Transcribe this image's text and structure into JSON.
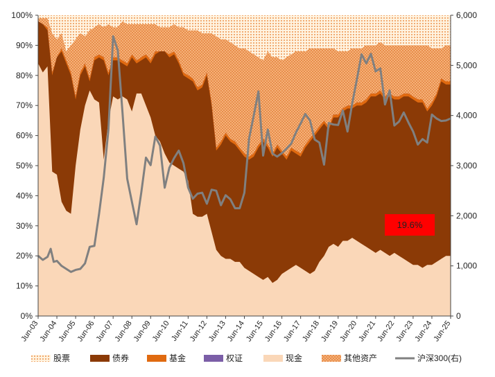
{
  "chart_data": {
    "type": "area",
    "title": "",
    "x_labels": [
      "Jun-03",
      "Jun-04",
      "Jun-05",
      "Jun-06",
      "Jun-07",
      "Jun-08",
      "Jun-09",
      "Jun-10",
      "Jun-11",
      "Jun-12",
      "Jun-13",
      "Jun-14",
      "Jun-15",
      "Jun-16",
      "Jun-17",
      "Jun-18",
      "Jun-19",
      "Jun-20",
      "Jun-21",
      "Jun-22",
      "Jun-23",
      "Jun-24",
      "Jun-25"
    ],
    "y_left": {
      "min": 0,
      "max": 100,
      "ticks": [
        "0%",
        "10%",
        "20%",
        "30%",
        "40%",
        "50%",
        "60%",
        "70%",
        "80%",
        "90%",
        "100%"
      ]
    },
    "y_right": {
      "min": 0,
      "max": 6000,
      "ticks": [
        "0",
        "1,000",
        "2,000",
        "3,000",
        "4,000",
        "5,000",
        "6,000"
      ]
    },
    "colors": {
      "stock": "#FFF3E0",
      "stock_dots": "#E87722",
      "bond": "#8B3A06",
      "fund": "#E06A10",
      "warrant": "#7B5EA7",
      "cash": "#FAD7B8",
      "cash_light": "#F8BE92",
      "other": "#F5B27A",
      "other_dots": "#D86010",
      "index": "#808080",
      "annotation_bg": "#FF0000"
    },
    "x_time": [
      2003.5,
      2003.75,
      2004.0,
      2004.25,
      2004.5,
      2004.75,
      2005.0,
      2005.25,
      2005.5,
      2005.75,
      2006.0,
      2006.25,
      2006.5,
      2006.75,
      2007.0,
      2007.25,
      2007.5,
      2007.75,
      2008.0,
      2008.25,
      2008.5,
      2008.75,
      2009.0,
      2009.25,
      2009.5,
      2009.75,
      2010.0,
      2010.25,
      2010.5,
      2010.75,
      2011.0,
      2011.25,
      2011.5,
      2011.75,
      2012.0,
      2012.25,
      2012.5,
      2012.75,
      2013.0,
      2013.25,
      2013.5,
      2013.75,
      2014.0,
      2014.25,
      2014.5,
      2014.75,
      2015.0,
      2015.25,
      2015.5,
      2015.75,
      2016.0,
      2016.25,
      2016.5,
      2016.75,
      2017.0,
      2017.25,
      2017.5,
      2017.75,
      2018.0,
      2018.25,
      2018.5,
      2018.75,
      2019.0,
      2019.25,
      2019.5,
      2019.75,
      2020.0,
      2020.25,
      2020.5,
      2020.75,
      2021.0,
      2021.25,
      2021.5,
      2021.75,
      2022.0,
      2022.25,
      2022.5,
      2022.75,
      2023.0,
      2023.25,
      2023.5,
      2023.75,
      2024.0,
      2024.25,
      2024.5,
      2024.75,
      2025.0,
      2025.25,
      2025.5
    ],
    "series": [
      {
        "name": "现金",
        "key": "cash",
        "values": [
          84,
          81,
          83,
          48,
          47,
          38,
          35,
          34,
          50,
          62,
          70,
          75,
          72,
          71,
          52,
          65,
          73,
          72,
          73,
          72,
          68,
          74,
          74,
          70,
          66,
          60,
          58,
          54,
          51,
          50,
          49,
          48,
          45,
          34,
          33,
          33,
          34,
          28,
          22,
          20,
          19,
          19,
          18,
          18,
          16,
          15,
          14,
          13,
          12,
          13,
          11,
          12,
          14,
          15,
          16,
          17,
          16,
          15,
          14,
          15,
          18,
          20,
          23,
          24,
          23,
          25,
          25,
          26,
          25,
          24,
          23,
          22,
          21,
          22,
          21,
          20,
          21,
          20,
          19,
          18,
          17,
          17,
          16,
          17,
          17,
          18,
          19,
          20,
          20
        ]
      },
      {
        "name": "债券",
        "key": "bond",
        "values": [
          98,
          97,
          95,
          80,
          86,
          88,
          84,
          80,
          72,
          80,
          83,
          78,
          85,
          86,
          85,
          80,
          85,
          85,
          84,
          83,
          86,
          84,
          85,
          86,
          84,
          87,
          88,
          88,
          86,
          87,
          84,
          80,
          79,
          78,
          75,
          76,
          80,
          70,
          55,
          57,
          60,
          58,
          57,
          55,
          53,
          52,
          53,
          56,
          58,
          56,
          53,
          56,
          54,
          52,
          55,
          54,
          53,
          56,
          58,
          60,
          62,
          64,
          62,
          66,
          66,
          68,
          69,
          69,
          70,
          70,
          71,
          73,
          73,
          74,
          72,
          73,
          72,
          72,
          73,
          73,
          72,
          71,
          71,
          68,
          70,
          73,
          78,
          77,
          77
        ]
      },
      {
        "name": "基金",
        "key": "fund",
        "values": [
          98,
          97,
          96,
          81,
          86,
          89,
          85,
          81,
          73,
          81,
          84,
          79,
          86,
          87,
          86,
          81,
          86,
          86,
          85,
          84,
          87,
          85,
          86,
          87,
          85,
          88,
          88,
          88,
          87,
          88,
          85,
          81,
          80,
          79,
          76,
          77,
          81,
          71,
          56,
          58,
          61,
          59,
          58,
          56,
          54,
          53,
          54,
          57,
          59,
          57,
          54,
          57,
          55,
          53,
          56,
          55,
          54,
          57,
          59,
          61,
          63,
          65,
          63,
          67,
          67,
          69,
          70,
          70,
          71,
          71,
          72,
          74,
          74,
          75,
          73,
          74,
          73,
          73,
          74,
          74,
          73,
          72,
          72,
          69,
          71,
          74,
          79,
          78,
          78
        ]
      },
      {
        "name": "权证",
        "key": "warrant",
        "values": [
          98,
          97,
          96,
          81,
          86,
          89,
          85,
          81,
          73,
          81,
          84,
          79,
          86,
          87,
          86,
          81,
          86,
          86,
          85,
          84,
          87,
          85,
          86,
          87,
          85,
          88,
          88,
          88,
          87,
          88,
          85,
          81,
          80,
          79,
          76,
          77,
          81,
          71,
          56,
          58,
          61,
          59,
          58,
          56,
          54,
          53,
          54,
          57,
          59,
          57,
          54,
          57,
          55,
          53,
          56,
          55,
          54,
          57,
          59,
          61,
          63,
          65,
          63,
          67,
          67,
          69,
          70,
          70,
          71,
          71,
          72,
          74,
          74,
          75,
          73,
          74,
          73,
          73,
          74,
          74,
          73,
          72,
          72,
          69,
          71,
          74,
          79,
          78,
          78
        ]
      },
      {
        "name": "其他资产",
        "key": "other",
        "values": [
          99,
          99,
          99,
          94,
          92,
          94,
          88,
          90,
          92,
          94,
          93,
          95,
          96,
          97,
          96,
          97,
          96,
          96,
          98,
          97,
          97,
          97,
          97,
          97,
          97,
          97,
          96,
          96,
          96,
          97,
          96,
          96,
          95,
          95,
          95,
          94,
          94,
          94,
          93,
          92,
          92,
          91,
          90,
          89,
          89,
          88,
          87,
          86,
          85,
          88,
          86,
          86,
          85,
          86,
          87,
          88,
          88,
          88,
          89,
          89,
          89,
          89,
          89,
          89,
          88,
          88,
          88,
          89,
          89,
          89,
          90,
          90,
          90,
          91,
          90,
          90,
          90,
          90,
          90,
          90,
          90,
          90,
          90,
          90,
          89,
          89,
          89,
          90,
          90
        ]
      },
      {
        "name": "股票",
        "key": "stock",
        "values": [
          100,
          100,
          100,
          100,
          100,
          100,
          100,
          100,
          100,
          100,
          100,
          100,
          100,
          100,
          100,
          100,
          100,
          100,
          100,
          100,
          100,
          100,
          100,
          100,
          100,
          100,
          100,
          100,
          100,
          100,
          100,
          100,
          100,
          100,
          100,
          100,
          100,
          100,
          100,
          100,
          100,
          100,
          100,
          100,
          100,
          100,
          100,
          100,
          100,
          100,
          100,
          100,
          100,
          100,
          100,
          100,
          100,
          100,
          100,
          100,
          100,
          100,
          100,
          100,
          100,
          100,
          100,
          100,
          100,
          100,
          100,
          100,
          100,
          100,
          100,
          100,
          100,
          100,
          100,
          100,
          100,
          100,
          100,
          100,
          100,
          100,
          100,
          100,
          100
        ]
      }
    ],
    "index_series": {
      "name": "沪深300(右)",
      "points": [
        [
          2003.5,
          1200
        ],
        [
          2003.75,
          1120
        ],
        [
          2004.0,
          1180
        ],
        [
          2004.17,
          1340
        ],
        [
          2004.33,
          1080
        ],
        [
          2004.5,
          1100
        ],
        [
          2004.75,
          1000
        ],
        [
          2005.0,
          940
        ],
        [
          2005.25,
          880
        ],
        [
          2005.5,
          920
        ],
        [
          2005.75,
          940
        ],
        [
          2006.0,
          1050
        ],
        [
          2006.25,
          1380
        ],
        [
          2006.5,
          1400
        ],
        [
          2006.75,
          2040
        ],
        [
          2007.0,
          2760
        ],
        [
          2007.25,
          3720
        ],
        [
          2007.5,
          5580
        ],
        [
          2007.75,
          5300
        ],
        [
          2008.0,
          4060
        ],
        [
          2008.25,
          2740
        ],
        [
          2008.5,
          2280
        ],
        [
          2008.75,
          1830
        ],
        [
          2009.0,
          2460
        ],
        [
          2009.25,
          3160
        ],
        [
          2009.5,
          3010
        ],
        [
          2009.75,
          3580
        ],
        [
          2010.0,
          3400
        ],
        [
          2010.25,
          2560
        ],
        [
          2010.5,
          2960
        ],
        [
          2010.75,
          3150
        ],
        [
          2011.0,
          3300
        ],
        [
          2011.25,
          3050
        ],
        [
          2011.5,
          2560
        ],
        [
          2011.75,
          2340
        ],
        [
          2012.0,
          2440
        ],
        [
          2012.25,
          2460
        ],
        [
          2012.5,
          2240
        ],
        [
          2012.75,
          2520
        ],
        [
          2013.0,
          2500
        ],
        [
          2013.25,
          2210
        ],
        [
          2013.5,
          2410
        ],
        [
          2013.75,
          2330
        ],
        [
          2014.0,
          2150
        ],
        [
          2014.25,
          2150
        ],
        [
          2014.5,
          2460
        ],
        [
          2014.75,
          3540
        ],
        [
          2015.0,
          4000
        ],
        [
          2015.25,
          4480
        ],
        [
          2015.5,
          3200
        ],
        [
          2015.75,
          3720
        ],
        [
          2016.0,
          3240
        ],
        [
          2016.25,
          3180
        ],
        [
          2016.5,
          3250
        ],
        [
          2016.75,
          3340
        ],
        [
          2017.0,
          3440
        ],
        [
          2017.25,
          3660
        ],
        [
          2017.5,
          3840
        ],
        [
          2017.75,
          4030
        ],
        [
          2018.0,
          3900
        ],
        [
          2018.25,
          3520
        ],
        [
          2018.5,
          3460
        ],
        [
          2018.75,
          3020
        ],
        [
          2019.0,
          3850
        ],
        [
          2019.25,
          3820
        ],
        [
          2019.5,
          3810
        ],
        [
          2019.75,
          4100
        ],
        [
          2020.0,
          3680
        ],
        [
          2020.25,
          4240
        ],
        [
          2020.5,
          4720
        ],
        [
          2020.75,
          5220
        ],
        [
          2021.0,
          5040
        ],
        [
          2021.25,
          5230
        ],
        [
          2021.5,
          4880
        ],
        [
          2021.75,
          4940
        ],
        [
          2022.0,
          4220
        ],
        [
          2022.25,
          4500
        ],
        [
          2022.5,
          3800
        ],
        [
          2022.75,
          3880
        ],
        [
          2023.0,
          4060
        ],
        [
          2023.25,
          3860
        ],
        [
          2023.5,
          3680
        ],
        [
          2023.75,
          3420
        ],
        [
          2024.0,
          3530
        ],
        [
          2024.25,
          3460
        ],
        [
          2024.5,
          4020
        ],
        [
          2024.75,
          3940
        ],
        [
          2025.0,
          3890
        ],
        [
          2025.25,
          3900
        ],
        [
          2025.5,
          3940
        ]
      ]
    },
    "annotation": {
      "text": "19.6%"
    },
    "legend": [
      {
        "label": "股票",
        "key": "stock",
        "kind": "dots_light"
      },
      {
        "label": "债券",
        "key": "bond",
        "kind": "solid"
      },
      {
        "label": "基金",
        "key": "fund",
        "kind": "solid"
      },
      {
        "label": "权证",
        "key": "warrant",
        "kind": "solid"
      },
      {
        "label": "现金",
        "key": "cash",
        "kind": "solid"
      },
      {
        "label": "其他资产",
        "key": "other",
        "kind": "dots_dark"
      },
      {
        "label": "沪深300(右)",
        "key": "index",
        "kind": "line"
      }
    ]
  }
}
